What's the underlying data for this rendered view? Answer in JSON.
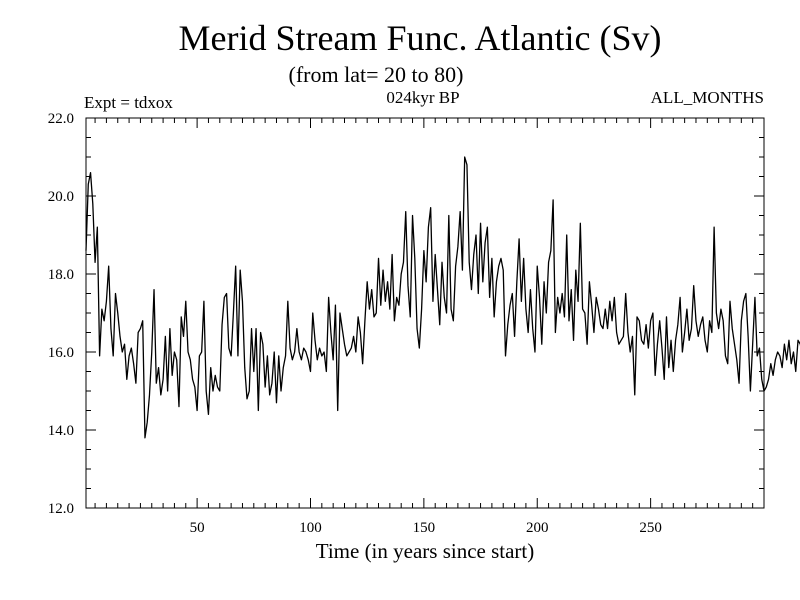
{
  "chart_data": {
    "type": "line",
    "title": "Merid Stream Func. Atlantic (Sv)",
    "subtitle": "(from lat= 20 to 80)",
    "header_left": "Expt = tdxox",
    "header_center": "024kyr BP",
    "header_right": "ALL_MONTHS",
    "xlabel": "Time (in years since start)",
    "ylabel": "",
    "xlim": [
      1,
      300
    ],
    "ylim": [
      12.0,
      22.0
    ],
    "x_ticks": [
      50,
      100,
      150,
      200,
      250
    ],
    "x_tick_labels": [
      "50",
      "100",
      "150",
      "200",
      "250"
    ],
    "y_ticks": [
      12.0,
      14.0,
      16.0,
      18.0,
      20.0,
      22.0
    ],
    "y_tick_labels": [
      "12.0",
      "14.0",
      "16.0",
      "18.0",
      "20.0",
      "22.0"
    ],
    "grid": false,
    "series": [
      {
        "x_start": 1,
        "x_step": 1,
        "values": [
          18.6,
          20.3,
          20.6,
          19.8,
          18.3,
          19.2,
          15.9,
          17.1,
          16.8,
          17.3,
          18.2,
          16.6,
          15.9,
          17.5,
          17.0,
          16.4,
          16.0,
          16.2,
          15.3,
          15.9,
          16.1,
          15.7,
          15.2,
          16.5,
          16.6,
          16.8,
          13.8,
          14.2,
          14.9,
          16.0,
          17.6,
          15.2,
          15.6,
          14.9,
          15.3,
          16.4,
          15.0,
          16.6,
          15.4,
          16.0,
          15.8,
          14.6,
          16.9,
          16.4,
          17.3,
          16.0,
          15.8,
          15.3,
          15.1,
          14.5,
          15.9,
          16.0,
          17.3,
          15.0,
          14.4,
          15.6,
          15.0,
          15.4,
          15.1,
          15.0,
          16.7,
          17.4,
          17.5,
          16.1,
          15.9,
          17.0,
          18.2,
          15.9,
          18.1,
          17.3,
          15.6,
          14.8,
          15.0,
          16.6,
          15.5,
          16.6,
          14.5,
          16.5,
          16.2,
          15.1,
          15.9,
          14.9,
          15.2,
          16.0,
          14.7,
          15.9,
          15.0,
          15.6,
          15.9,
          17.3,
          16.1,
          15.8,
          16.0,
          16.6,
          16.0,
          15.8,
          16.1,
          16.0,
          15.8,
          15.5,
          17.0,
          16.3,
          15.8,
          16.1,
          15.9,
          16.0,
          15.5,
          17.4,
          16.5,
          15.8,
          17.2,
          14.5,
          17.0,
          16.6,
          16.2,
          15.9,
          16.0,
          16.1,
          16.4,
          16.0,
          16.9,
          16.5,
          15.7,
          16.8,
          17.8,
          17.1,
          17.6,
          16.9,
          17.0,
          18.4,
          17.2,
          18.1,
          17.3,
          17.8,
          17.1,
          18.5,
          16.8,
          17.4,
          17.2,
          18.0,
          18.3,
          19.6,
          17.7,
          16.9,
          19.5,
          18.4,
          16.6,
          16.1,
          17.1,
          18.6,
          17.8,
          19.2,
          19.7,
          17.3,
          18.5,
          17.6,
          16.7,
          18.3,
          17.4,
          17.0,
          19.5,
          17.1,
          16.8,
          18.2,
          18.7,
          19.6,
          18.1,
          21.0,
          20.8,
          18.3,
          17.6,
          18.5,
          19.0,
          17.5,
          19.3,
          17.8,
          18.8,
          19.2,
          17.4,
          18.4,
          16.9,
          17.8,
          18.2,
          18.4,
          18.1,
          15.9,
          16.7,
          17.2,
          17.5,
          16.4,
          17.8,
          18.9,
          17.3,
          18.4,
          17.1,
          16.5,
          17.6,
          16.6,
          16.0,
          18.2,
          17.4,
          16.2,
          17.8,
          17.0,
          18.3,
          18.6,
          19.9,
          16.5,
          17.4,
          17.0,
          17.5,
          16.9,
          19.0,
          16.8,
          17.6,
          16.3,
          18.1,
          17.3,
          19.3,
          17.1,
          17.0,
          16.2,
          17.8,
          17.2,
          16.5,
          17.4,
          17.1,
          16.7,
          16.6,
          17.1,
          16.6,
          17.3,
          16.8,
          17.4,
          16.5,
          16.2,
          16.3,
          16.4,
          17.5,
          16.5,
          16.0,
          16.4,
          14.9,
          16.9,
          16.8,
          16.3,
          16.2,
          16.7,
          16.1,
          16.8,
          17.0,
          15.4,
          16.2,
          16.8,
          16.1,
          15.3,
          16.9,
          15.6,
          16.3,
          15.5,
          16.3,
          16.7,
          17.4,
          16.0,
          16.5,
          17.1,
          16.3,
          16.6,
          17.7,
          16.8,
          16.4,
          16.7,
          16.9,
          16.3,
          16.0,
          16.8,
          16.5,
          19.2,
          17.0,
          16.6,
          17.1,
          16.8,
          15.9,
          15.7,
          17.3,
          16.6,
          16.2,
          15.8,
          15.2,
          16.8,
          17.3,
          17.5,
          16.4,
          15.0,
          16.2,
          17.4,
          15.9,
          16.1,
          15.3,
          15.0,
          15.1,
          15.3,
          15.7,
          15.4,
          15.8,
          16.0,
          15.9,
          15.6,
          16.2,
          15.8,
          16.3,
          15.7,
          16.0,
          15.5,
          16.3,
          16.2,
          15.9,
          16.5,
          16.3,
          16.5
        ]
      }
    ]
  }
}
